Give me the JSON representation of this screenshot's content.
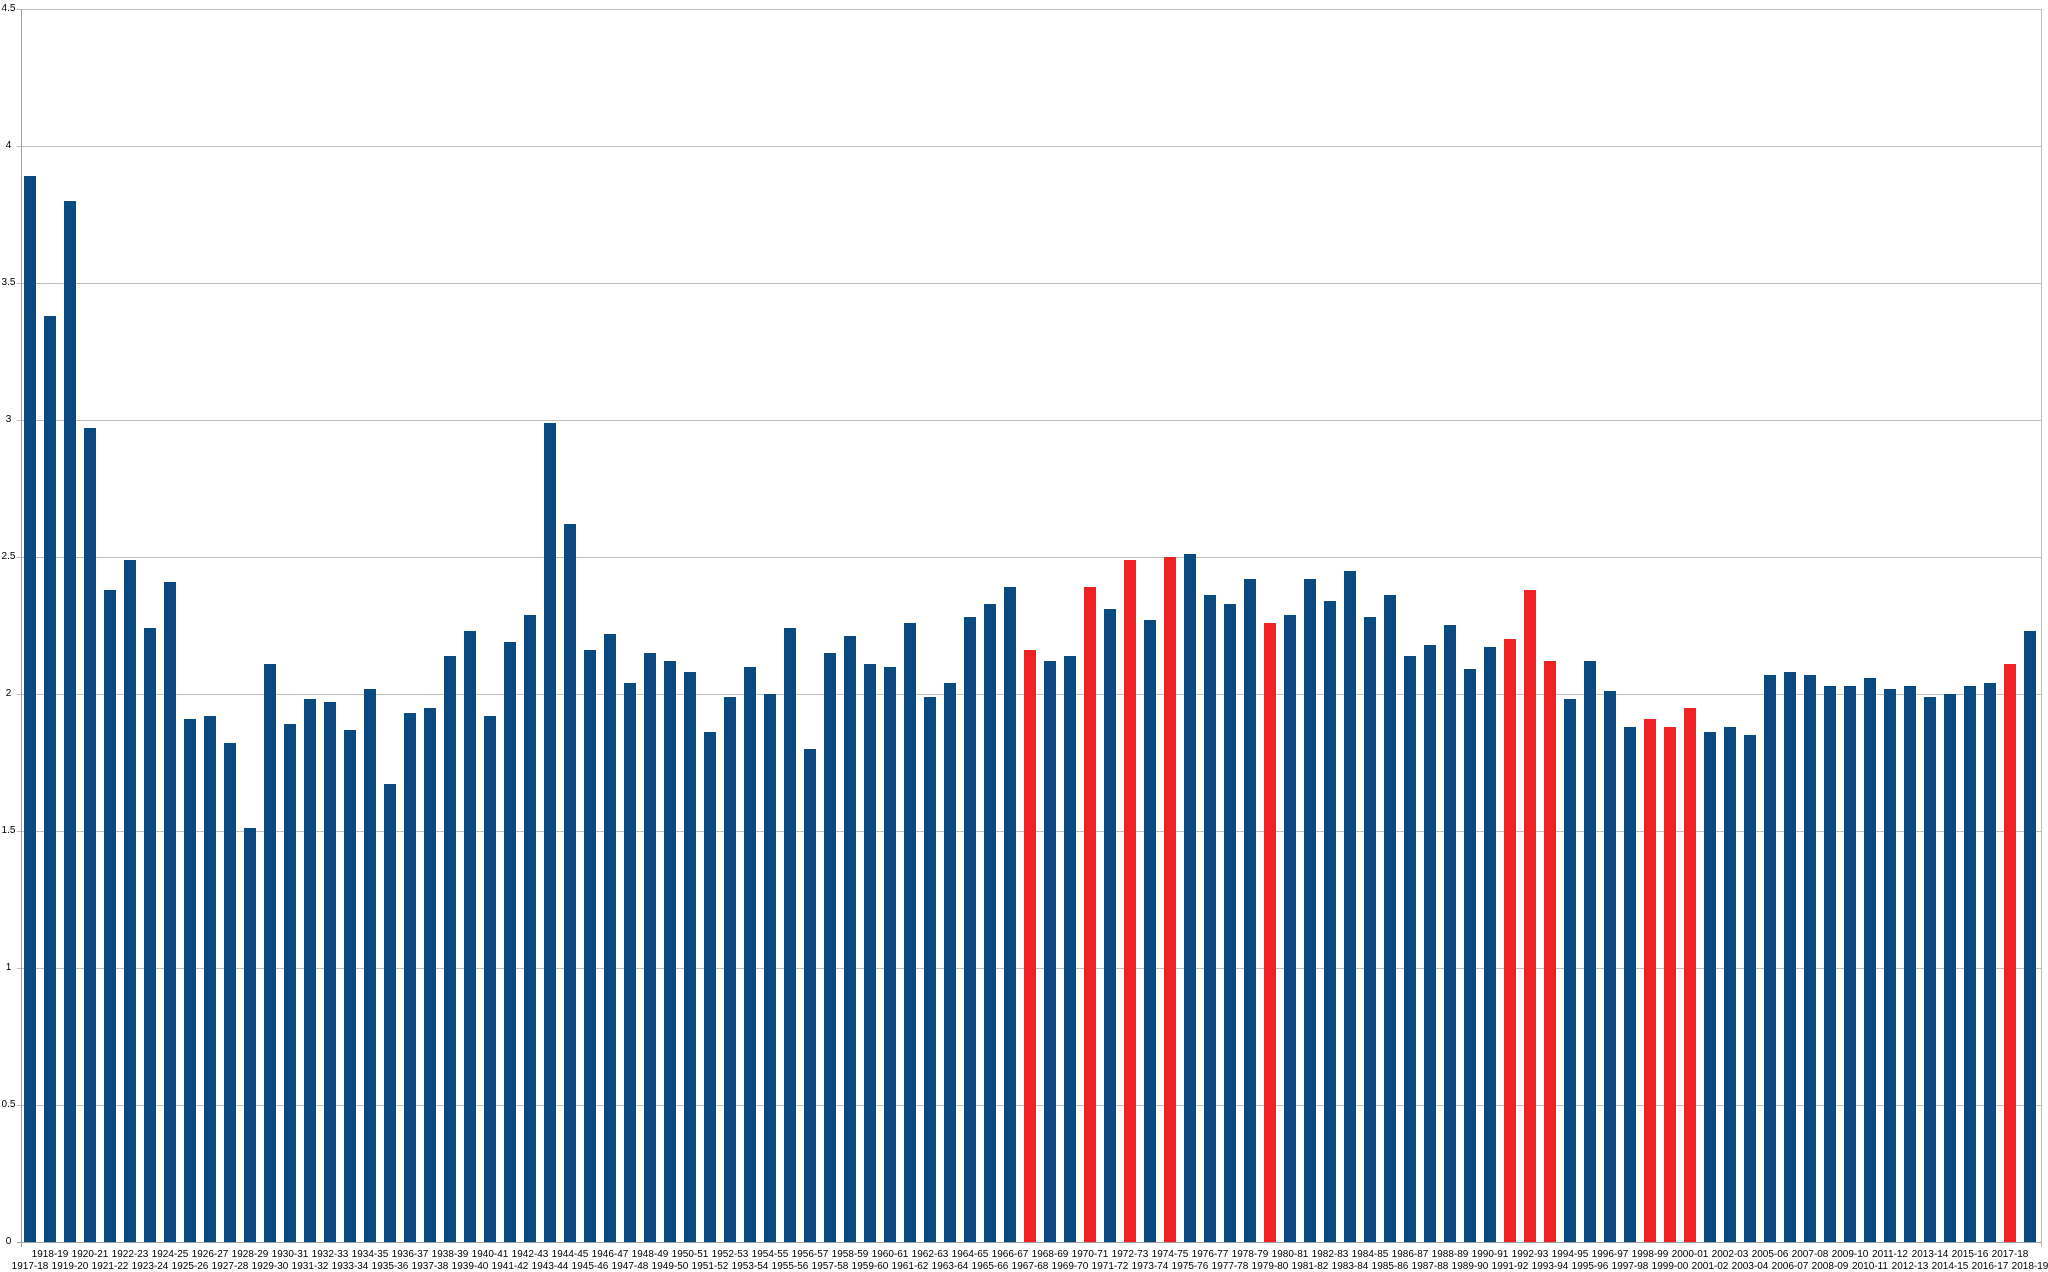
{
  "chart_data": {
    "type": "bar",
    "categories": [
      "1917-18",
      "1918-19",
      "1919-20",
      "1920-21",
      "1921-22",
      "1922-23",
      "1923-24",
      "1924-25",
      "1925-26",
      "1926-27",
      "1927-28",
      "1928-29",
      "1929-30",
      "1930-31",
      "1931-32",
      "1932-33",
      "1933-34",
      "1934-35",
      "1935-36",
      "1936-37",
      "1937-38",
      "1938-39",
      "1939-40",
      "1940-41",
      "1941-42",
      "1942-43",
      "1943-44",
      "1944-45",
      "1945-46",
      "1946-47",
      "1947-48",
      "1948-49",
      "1949-50",
      "1950-51",
      "1951-52",
      "1952-53",
      "1953-54",
      "1954-55",
      "1955-56",
      "1956-57",
      "1957-58",
      "1958-59",
      "1959-60",
      "1960-61",
      "1961-62",
      "1962-63",
      "1963-64",
      "1964-65",
      "1965-66",
      "1966-67",
      "1967-68",
      "1968-69",
      "1969-70",
      "1970-71",
      "1971-72",
      "1972-73",
      "1973-74",
      "1974-75",
      "1975-76",
      "1976-77",
      "1977-78",
      "1978-79",
      "1979-80",
      "1980-81",
      "1981-82",
      "1982-83",
      "1983-84",
      "1984-85",
      "1985-86",
      "1986-87",
      "1987-88",
      "1988-89",
      "1989-90",
      "1990-91",
      "1991-92",
      "1992-93",
      "1993-94",
      "1994-95",
      "1995-96",
      "1996-97",
      "1997-98",
      "1998-99",
      "1999-00",
      "2000-01",
      "2001-02",
      "2002-03",
      "2003-04",
      "2005-06",
      "2006-07",
      "2007-08",
      "2008-09",
      "2009-10",
      "2010-11",
      "2011-12",
      "2012-13",
      "2013-14",
      "2014-15",
      "2015-16",
      "2016-17",
      "2017-18",
      "2018-19"
    ],
    "values": [
      3.89,
      3.38,
      3.8,
      2.97,
      2.38,
      2.49,
      2.24,
      2.41,
      1.91,
      1.92,
      1.82,
      1.51,
      2.11,
      1.89,
      1.98,
      1.97,
      1.87,
      2.02,
      1.67,
      1.93,
      1.95,
      2.14,
      2.23,
      1.92,
      2.19,
      2.29,
      2.99,
      2.62,
      2.16,
      2.22,
      2.04,
      2.15,
      2.12,
      2.08,
      1.86,
      1.99,
      2.1,
      2.0,
      2.24,
      1.8,
      2.15,
      2.21,
      2.11,
      2.1,
      2.26,
      1.99,
      2.04,
      2.28,
      2.33,
      2.39,
      2.16,
      2.12,
      2.14,
      2.39,
      2.31,
      2.49,
      2.27,
      2.5,
      2.51,
      2.36,
      2.33,
      2.42,
      2.26,
      2.29,
      2.42,
      2.34,
      2.45,
      2.28,
      2.36,
      2.14,
      2.18,
      2.25,
      2.09,
      2.17,
      2.2,
      2.38,
      2.12,
      1.98,
      2.12,
      2.01,
      1.88,
      1.91,
      1.88,
      1.95,
      1.86,
      1.88,
      1.85,
      2.07,
      2.08,
      2.07,
      2.03,
      2.03,
      2.06,
      2.02,
      2.03,
      1.99,
      2.0,
      2.03,
      2.04,
      2.11,
      2.23
    ],
    "highlighted_categories": [
      "1967-68",
      "1970-71",
      "1972-73",
      "1974-75",
      "1979-80",
      "1991-92",
      "1992-93",
      "1993-94",
      "1998-99",
      "1999-00",
      "2000-01",
      "2017-18"
    ],
    "colors": {
      "bar_default": "#0a4a80",
      "bar_highlight": "#ee2125",
      "gridline": "#bfbfbf",
      "axis": "#9e9e9e",
      "text": "#000000"
    },
    "ylim": [
      0,
      4.5
    ],
    "ytick_labels": [
      "4.5",
      "4",
      "3.5",
      "3",
      "2.5",
      "2",
      "1.5",
      "1",
      "0.5",
      "0"
    ],
    "ytick_values": [
      4.5,
      4,
      3.5,
      3,
      2.5,
      2,
      1.5,
      1,
      0.5,
      0
    ],
    "grid": true,
    "legend": false,
    "xlabel": "",
    "ylabel": "",
    "x_labels_staggered_two_rows": true
  }
}
